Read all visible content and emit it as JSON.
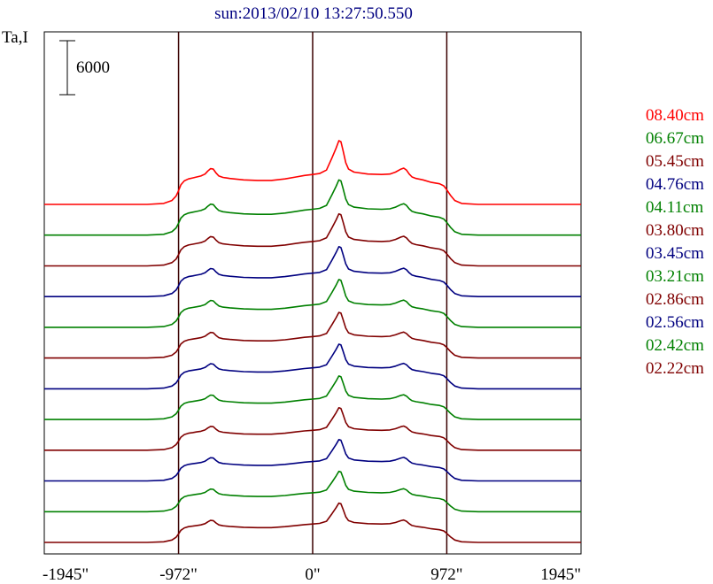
{
  "chart_data": {
    "type": "line",
    "title": "sun:2013/02/10 13:27:50.550",
    "ylabel": "Ta,I",
    "scale_bar_label": "6000",
    "scale_bar_value": 6000,
    "xlim": [
      -1945,
      1945
    ],
    "x_ticks": [
      {
        "value": -1945,
        "label": "-1945\""
      },
      {
        "value": -972,
        "label": "-972\""
      },
      {
        "value": 0,
        "label": "0\""
      },
      {
        "value": 972,
        "label": "972\""
      },
      {
        "value": 1945,
        "label": "1945\""
      }
    ],
    "vertical_markers": [
      -972,
      0,
      972
    ],
    "profile_shape": {
      "x": [
        -1945,
        -1500,
        -1200,
        -1080,
        -1020,
        -990,
        -972,
        -955,
        -930,
        -900,
        -870,
        -840,
        -810,
        -780,
        -760,
        -740,
        -720,
        -700,
        -680,
        -650,
        -600,
        -500,
        -400,
        -300,
        -200,
        -120,
        -60,
        0,
        50,
        100,
        140,
        170,
        190,
        205,
        220,
        240,
        260,
        300,
        400,
        500,
        560,
        600,
        640,
        660,
        680,
        700,
        720,
        750,
        800,
        860,
        920,
        950,
        972,
        1000,
        1030,
        1080,
        1200,
        1500,
        1945
      ],
      "y": [
        0,
        0,
        0,
        0.02,
        0.08,
        0.17,
        0.28,
        0.4,
        0.48,
        0.52,
        0.54,
        0.56,
        0.58,
        0.62,
        0.68,
        0.73,
        0.72,
        0.64,
        0.58,
        0.55,
        0.53,
        0.5,
        0.49,
        0.49,
        0.52,
        0.56,
        0.59,
        0.61,
        0.63,
        0.7,
        0.95,
        1.15,
        1.3,
        1.28,
        1.1,
        0.85,
        0.72,
        0.66,
        0.62,
        0.61,
        0.62,
        0.66,
        0.72,
        0.74,
        0.7,
        0.62,
        0.56,
        0.53,
        0.5,
        0.45,
        0.42,
        0.38,
        0.3,
        0.18,
        0.08,
        0.02,
        0,
        0,
        0
      ]
    },
    "series": [
      {
        "name": "08.40cm",
        "color": "#ff0000",
        "peak": 6000
      },
      {
        "name": "06.67cm",
        "color": "#008000",
        "peak": 5200
      },
      {
        "name": "05.45cm",
        "color": "#800000",
        "peak": 4900
      },
      {
        "name": "04.76cm",
        "color": "#000080",
        "peak": 4700
      },
      {
        "name": "04.11cm",
        "color": "#008000",
        "peak": 4500
      },
      {
        "name": "03.80cm",
        "color": "#800000",
        "peak": 4300
      },
      {
        "name": "03.45cm",
        "color": "#000080",
        "peak": 4200
      },
      {
        "name": "03.21cm",
        "color": "#008000",
        "peak": 4100
      },
      {
        "name": "02.86cm",
        "color": "#800000",
        "peak": 4000
      },
      {
        "name": "02.56cm",
        "color": "#000080",
        "peak": 3900
      },
      {
        "name": "02.42cm",
        "color": "#008000",
        "peak": 3800
      },
      {
        "name": "02.22cm",
        "color": "#800000",
        "peak": 3700
      }
    ],
    "grid": false,
    "legend_placement": "right"
  }
}
